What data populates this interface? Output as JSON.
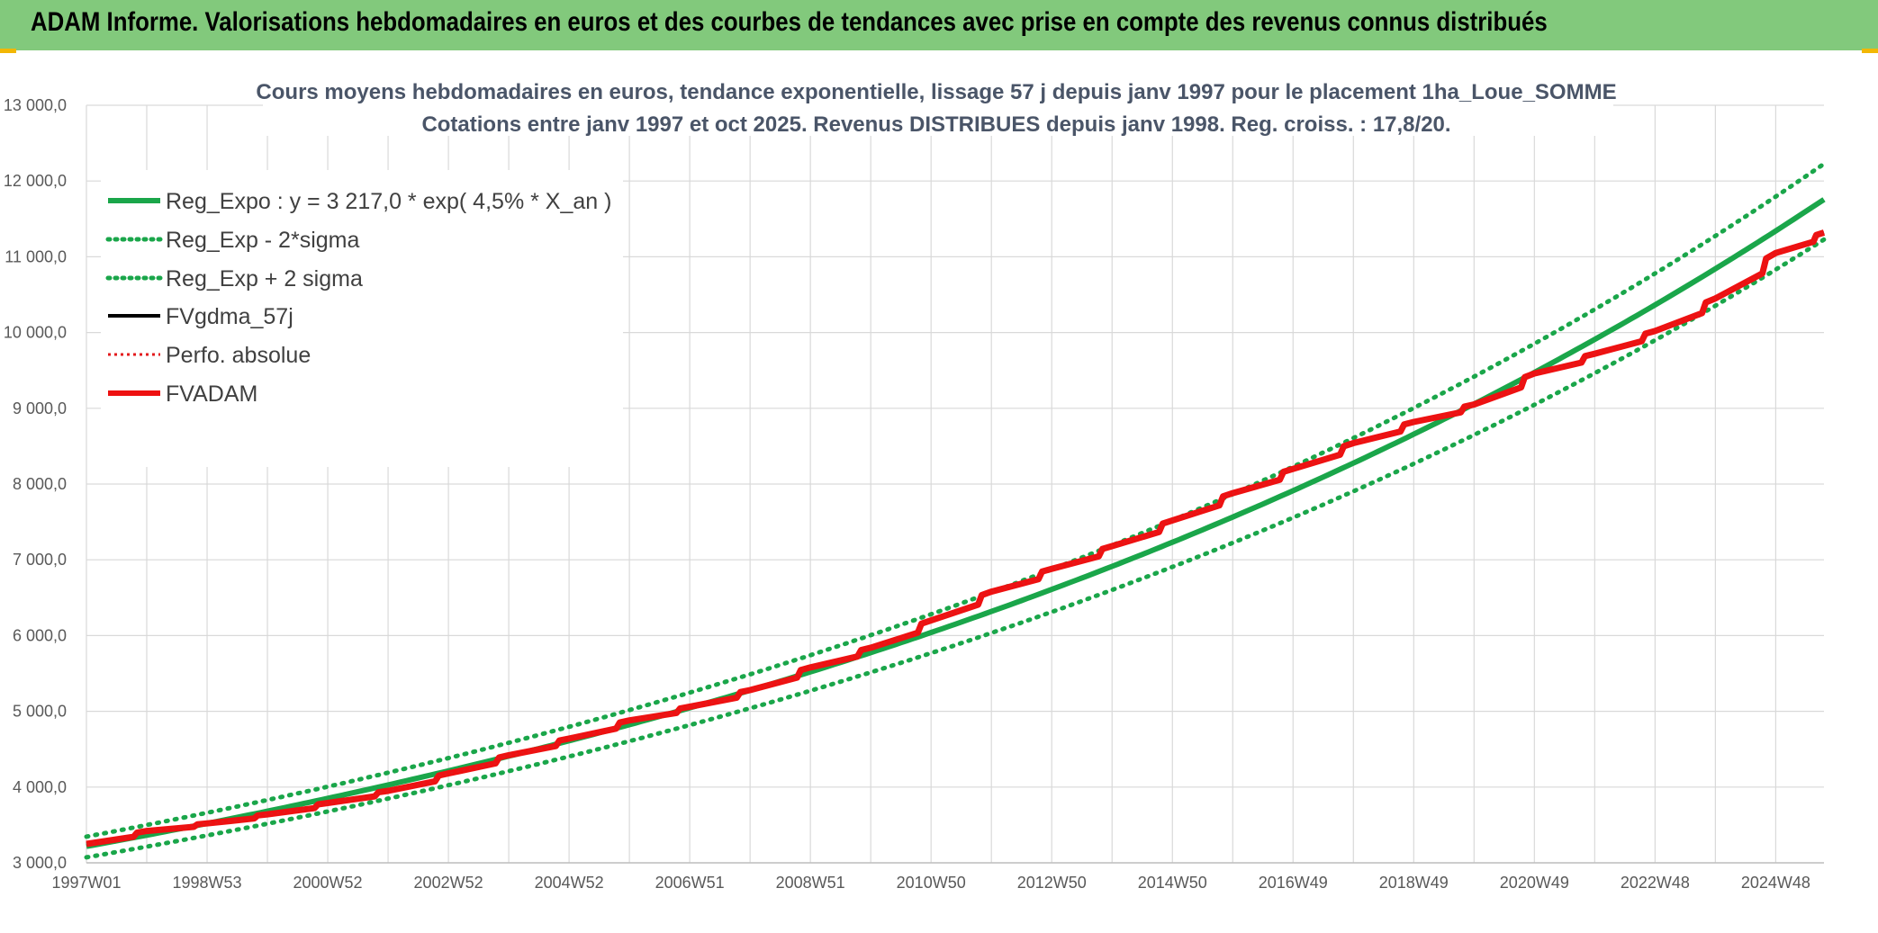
{
  "banner": {
    "title": "ADAM Informe. Valorisations hebdomadaires en euros et des courbes de tendances avec prise en compte des revenus connus distribués"
  },
  "colors": {
    "banner_bg": "#82c97c",
    "reg_green": "#1aa64a",
    "band_green": "#1aa64a",
    "fv_black": "#000000",
    "perf_red": "#e31a1c",
    "adam_red": "#ee1111",
    "grid": "#d9d9d9"
  },
  "chart_data": {
    "type": "line",
    "title_line1": "Cours moyens hebdomadaires en euros, tendance exponentielle, lissage 57 j depuis janv 1997 pour le placement 1ha_Loue_SOMME",
    "title_line2": "Cotations entre janv 1997 et oct 2025. Revenus DISTRIBUES depuis janv 1998. Reg. croiss. : 17,8/20.",
    "ylim": [
      3000,
      13000
    ],
    "y_ticks": [
      "3 000,0",
      "4 000,0",
      "5 000,0",
      "6 000,0",
      "7 000,0",
      "8 000,0",
      "9 000,0",
      "10 000,0",
      "11 000,0",
      "12 000,0",
      "13 000,0"
    ],
    "x_tick_labels": [
      "1997W01",
      "1998W53",
      "2000W52",
      "2002W52",
      "2004W52",
      "2006W51",
      "2008W51",
      "2010W50",
      "2012W50",
      "2014W50",
      "2016W49",
      "2018W49",
      "2020W49",
      "2022W48",
      "2024W48"
    ],
    "x_tick_years": [
      1997.0,
      1999.0,
      2001.0,
      2003.0,
      2005.0,
      2007.0,
      2009.0,
      2011.0,
      2013.0,
      2015.0,
      2017.0,
      2019.0,
      2021.0,
      2023.0,
      2025.0
    ],
    "x_range_years": [
      1997.0,
      2025.8
    ],
    "grid": true,
    "legend_position": "top-left",
    "legend": [
      "Reg_Expo : y = 3 217,0 * exp( 4,5% *  X_an )",
      "Reg_Exp - 2*sigma",
      "Reg_Exp + 2 sigma",
      "FVgdma_57j",
      "Perfo. absolue",
      "FVADAM"
    ],
    "regression": {
      "a": 3217.0,
      "rate": 0.045
    },
    "band_factors": {
      "minus_2sigma": 0.955,
      "plus_2sigma": 1.04
    },
    "series": [
      {
        "name": "FVADAM",
        "x": [
          1997.0,
          1998.0,
          1999.0,
          2000.0,
          2001.0,
          2002.0,
          2003.0,
          2004.0,
          2005.0,
          2006.0,
          2007.0,
          2008.0,
          2009.0,
          2010.0,
          2011.0,
          2012.0,
          2013.0,
          2014.0,
          2015.0,
          2016.0,
          2017.0,
          2018.0,
          2019.0,
          2020.0,
          2021.0,
          2022.0,
          2023.0,
          2024.0,
          2025.0,
          2025.8
        ],
        "y": [
          3250,
          3420,
          3520,
          3640,
          3790,
          3950,
          4180,
          4420,
          4640,
          4880,
          5060,
          5280,
          5580,
          5840,
          6200,
          6580,
          6880,
          7180,
          7520,
          7880,
          8200,
          8540,
          8820,
          9050,
          9460,
          9720,
          10020,
          10450,
          11050,
          11320
        ]
      }
    ]
  }
}
